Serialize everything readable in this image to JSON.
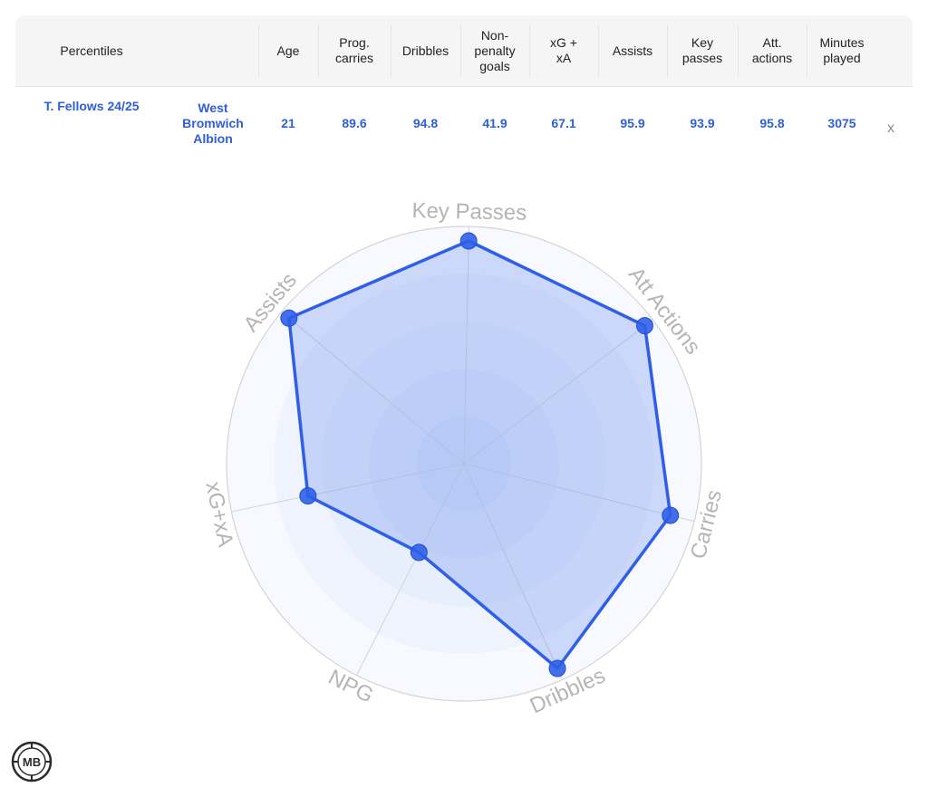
{
  "table": {
    "headers": [
      "Percentiles",
      "",
      "Age",
      "Prog.\ncarries",
      "Dribbles",
      "Non-\npenalty\ngoals",
      "xG +\nxA",
      "Assists",
      "Key\npasses",
      "Att.\nactions",
      "Minutes\nplayed"
    ],
    "row": {
      "player": "T. Fellows 24/25",
      "team": "West\nBromwich\nAlbion",
      "values": [
        "21",
        "89.6",
        "94.8",
        "41.9",
        "67.1",
        "95.9",
        "93.9",
        "95.8",
        "3075"
      ],
      "remove_label": "x"
    }
  },
  "chart_data": {
    "type": "radar",
    "title": "",
    "axes": [
      "Key Passes",
      "Att Actions",
      "Carries",
      "Dribbles",
      "NPG",
      "xG+xA",
      "Assists"
    ],
    "series": [
      {
        "values": [
          93.9,
          95.8,
          89.6,
          94.8,
          41.9,
          67.1,
          95.9
        ],
        "color": "#2f5fe8"
      }
    ],
    "range": [
      0,
      100
    ],
    "rings": 5,
    "legend": "none"
  },
  "logo_text": "MB",
  "colors": {
    "accent": "#2f5fe8",
    "fill": "#7b9cf0",
    "axis_label": "#b5b5b5",
    "grid": "#d4d4d4"
  }
}
